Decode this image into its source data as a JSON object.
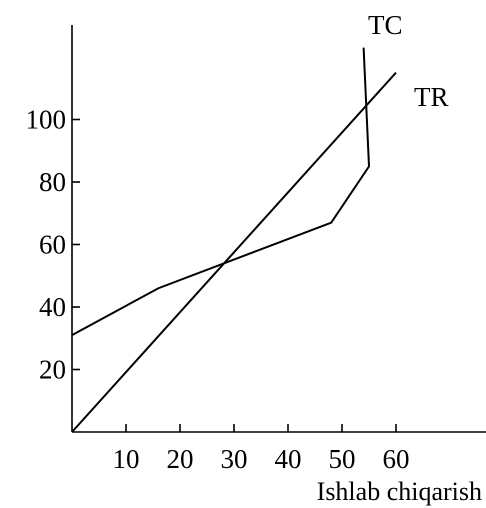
{
  "chart_data": {
    "type": "line",
    "title": "",
    "xlabel": "Ishlab chiqarish",
    "ylabel": "",
    "xlim": [
      0,
      70
    ],
    "ylim": [
      0,
      118
    ],
    "xticks": [
      10,
      20,
      30,
      40,
      50,
      60
    ],
    "yticks": [
      20,
      40,
      60,
      80,
      100
    ],
    "grid": false,
    "legend": "none",
    "series": [
      {
        "name": "TC",
        "x": [
          0,
          16,
          48,
          55,
          54
        ],
        "y": [
          31,
          46,
          67,
          85,
          123
        ]
      },
      {
        "name": "TR",
        "x": [
          0,
          60
        ],
        "y": [
          0,
          115
        ]
      }
    ]
  }
}
